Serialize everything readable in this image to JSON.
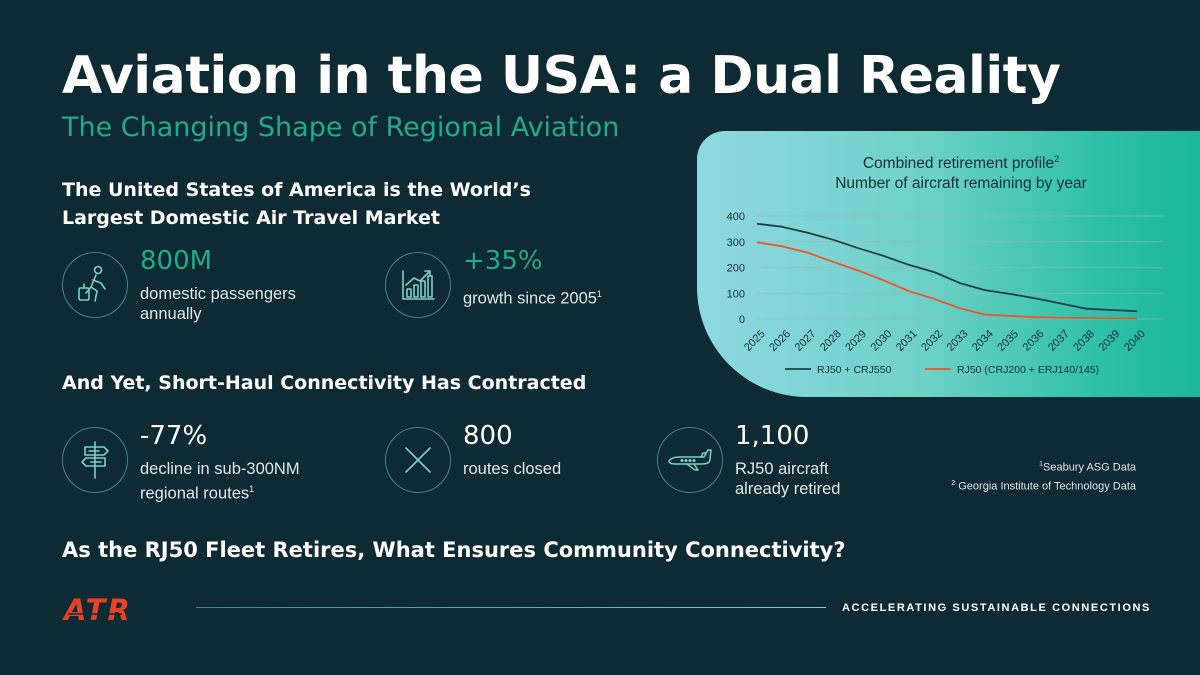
{
  "title": "Aviation in the USA: a Dual Reality",
  "subtitle": "The Changing Shape of Regional Aviation",
  "section1": {
    "heading_line1": "The United States of America is the World’s",
    "heading_line2": "Largest Domestic Air Travel Market",
    "stats": [
      {
        "value": "800M",
        "desc_line1": "domestic passengers",
        "desc_line2": "annually",
        "icon": "traveler-icon"
      },
      {
        "value": "+35%",
        "desc_line1": "growth since 2005",
        "sup": "1",
        "icon": "growth-chart-icon"
      }
    ]
  },
  "section2": {
    "heading": "And Yet, Short-Haul Connectivity Has Contracted",
    "stats": [
      {
        "value": "-77%",
        "desc_line1": "decline in sub-300NM",
        "desc_line2": "regional routes",
        "sup": "1",
        "icon": "signpost-icon"
      },
      {
        "value": "800",
        "desc_line1": "routes closed",
        "icon": "cross-icon"
      },
      {
        "value": "1,100",
        "desc_line1": "RJ50 aircraft",
        "desc_line2": "already retired",
        "icon": "airplane-icon"
      }
    ]
  },
  "footnotes": {
    "note1_sup": "1",
    "note1": "Seabury ASG Data",
    "note2_sup": "2",
    "note2": "Georgia Institute of Technology Data"
  },
  "question": "As the RJ50 Fleet Retires, What Ensures Community Connectivity?",
  "footer": {
    "logo": "ATR",
    "tagline": "ACCELERATING SUSTAINABLE CONNECTIONS"
  },
  "colors": {
    "background": "#0e2a33",
    "teal_accent": "#25a88e",
    "series_dark": "#1d3f48",
    "series_orange": "#f0522a",
    "logo_red": "#e8412a"
  },
  "chart_data": {
    "type": "line",
    "title_line1": "Combined retirement profile",
    "title_sup": "2",
    "title_line2": "Number of aircraft remaining by year",
    "x": [
      "2025",
      "2026",
      "2027",
      "2028",
      "2029",
      "2030",
      "2031",
      "2032",
      "2033",
      "2034",
      "2035",
      "2036",
      "2037",
      "2038",
      "2039",
      "2040"
    ],
    "y_ticks": [
      "0",
      "100",
      "200",
      "300",
      "400"
    ],
    "ylim": [
      0,
      400
    ],
    "grid": true,
    "legend_position": "bottom",
    "series": [
      {
        "name": "RJ50 + CRJ550",
        "color": "#1d3f48",
        "values": [
          370,
          358,
          335,
          308,
          275,
          245,
          210,
          182,
          140,
          112,
          97,
          80,
          60,
          40,
          35,
          30
        ]
      },
      {
        "name": "RJ50 (CRJ200 + ERJ140/145)",
        "color": "#f0522a",
        "values": [
          298,
          282,
          258,
          222,
          188,
          150,
          108,
          78,
          42,
          17,
          12,
          7,
          5,
          4,
          3,
          3
        ]
      }
    ]
  }
}
